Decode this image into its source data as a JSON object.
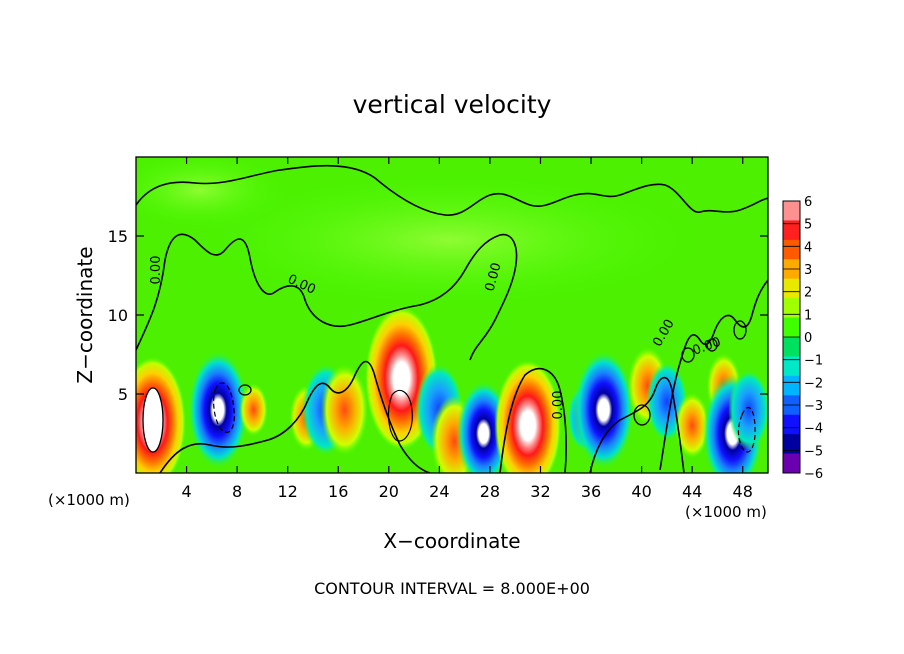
{
  "chart_data": {
    "type": "heatmap",
    "title": "vertical velocity",
    "xlabel": "X−coordinate",
    "ylabel": "Z−coordinate",
    "x_unit_left": "(×1000 m)",
    "x_unit_right": "(×1000 m)",
    "footer": "CONTOUR INTERVAL = 8.000E+00",
    "xlim": [
      0,
      50
    ],
    "ylim": [
      0,
      20
    ],
    "x_ticks": [
      "4",
      "8",
      "12",
      "16",
      "20",
      "24",
      "28",
      "32",
      "36",
      "40",
      "44",
      "48"
    ],
    "y_ticks": [
      "5",
      "10",
      "15"
    ],
    "colorbar": {
      "range": [
        -6,
        6
      ],
      "labels": [
        "6",
        "5",
        "4",
        "3",
        "2",
        "1",
        "0",
        "−1",
        "−2",
        "−3",
        "−4",
        "−5",
        "−6"
      ],
      "colors": [
        "#ff9090",
        "#ff2020",
        "#ff5a00",
        "#ffaa00",
        "#e8e800",
        "#a0ff00",
        "#40ff00",
        "#00e060",
        "#00e8c8",
        "#00b4ff",
        "#1060ff",
        "#1010ff",
        "#0000a0",
        "#6a00b0"
      ]
    },
    "contour_labels": [
      "0.00",
      "0.00",
      "0.00",
      "0.00",
      "0.00",
      "0.00"
    ],
    "features": [
      {
        "x": 1.3,
        "z": 3.2,
        "w": 8
      },
      {
        "x": 6.5,
        "z": 4.0,
        "w": -7
      },
      {
        "x": 9.3,
        "z": 4.0,
        "w": 2
      },
      {
        "x": 13.5,
        "z": 3.5,
        "w": 3
      },
      {
        "x": 15.0,
        "z": 4.0,
        "w": -5
      },
      {
        "x": 16.5,
        "z": 4.0,
        "w": 5
      },
      {
        "x": 21.0,
        "z": 6.0,
        "w": 9
      },
      {
        "x": 24.0,
        "z": 4.0,
        "w": -5
      },
      {
        "x": 25.2,
        "z": 2.0,
        "w": 5
      },
      {
        "x": 27.5,
        "z": 2.5,
        "w": -6
      },
      {
        "x": 31.0,
        "z": 3.0,
        "w": 8
      },
      {
        "x": 35.5,
        "z": 3.5,
        "w": -3
      },
      {
        "x": 37.0,
        "z": 4.0,
        "w": -7
      },
      {
        "x": 40.5,
        "z": 5.5,
        "w": 4
      },
      {
        "x": 42.0,
        "z": 4.5,
        "w": -4
      },
      {
        "x": 44.0,
        "z": 3.0,
        "w": 3
      },
      {
        "x": 46.5,
        "z": 5.5,
        "w": 3
      },
      {
        "x": 47.2,
        "z": 2.5,
        "w": -7
      },
      {
        "x": 48.5,
        "z": 4.0,
        "w": -4
      }
    ]
  }
}
